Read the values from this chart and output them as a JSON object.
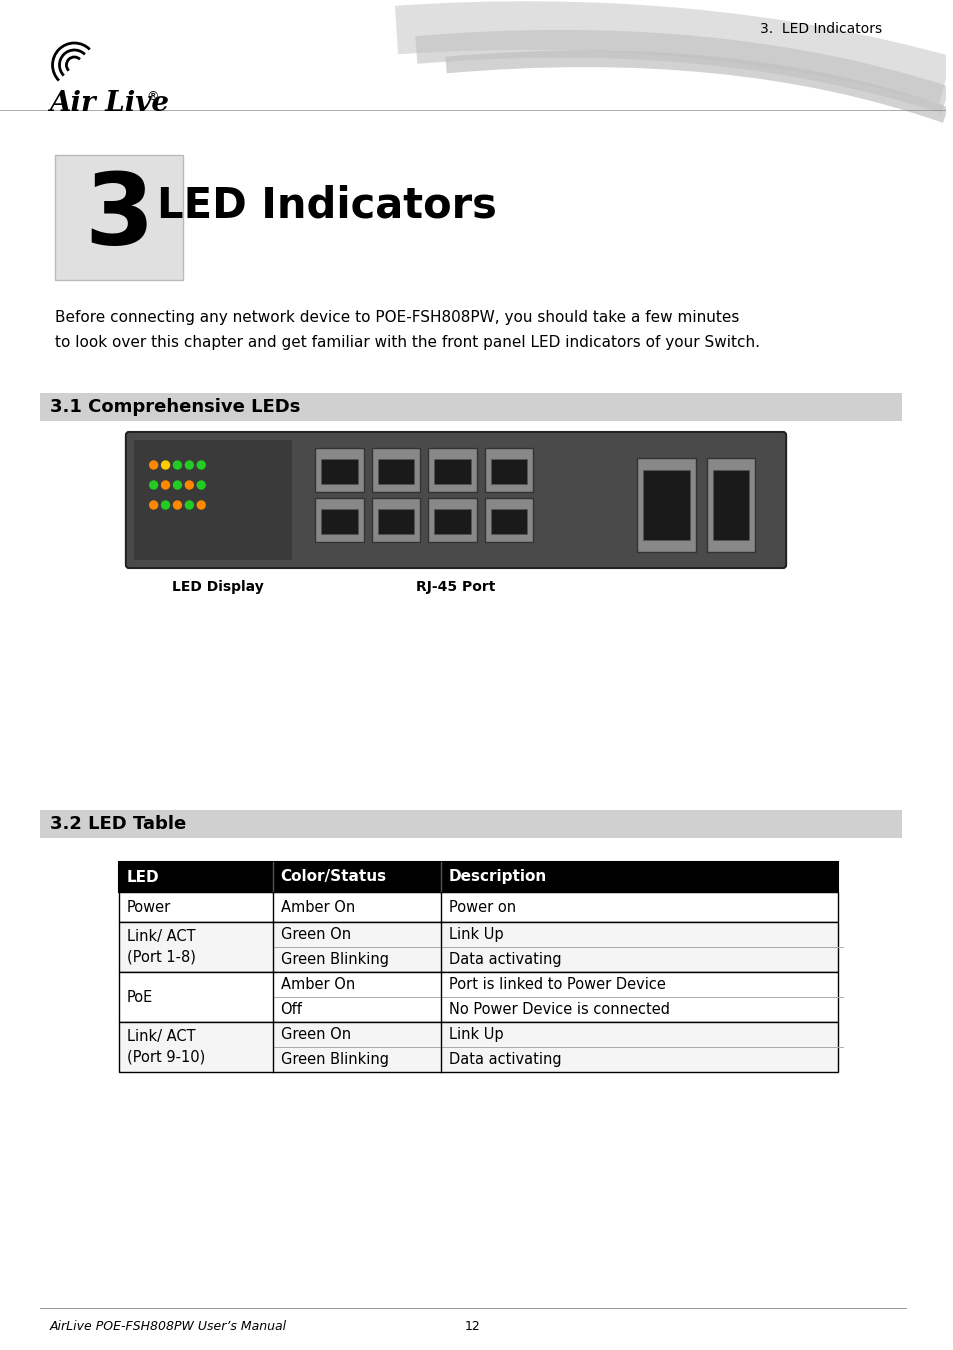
{
  "page_title": "3.  LED Indicators",
  "chapter_num": "3",
  "chapter_title": "LED Indicators",
  "intro_text": "Before connecting any network device to POE-FSH808PW, you should take a few minutes\nto look over this chapter and get familiar with the front panel LED indicators of your Switch.",
  "section1_title": "3.1 Comprehensive LEDs",
  "section2_title": "3.2 LED Table",
  "table_header": [
    "LED",
    "Color/Status",
    "Description"
  ],
  "table_rows": [
    [
      "Power",
      "Amber On",
      "Power on"
    ],
    [
      "Link/ ACT\n(Port 1-8)",
      "Green On\nGreen Blinking",
      "Link Up\nData activating"
    ],
    [
      "PoE",
      "Amber On\nOff",
      "Port is linked to Power Device\nNo Power Device is connected"
    ],
    [
      "Link/ ACT\n(Port 9-10)",
      "Green On\nGreen Blinking",
      "Link Up\nData activating"
    ]
  ],
  "led_label": "LED Display",
  "port_label": "RJ-45 Port",
  "footer_left": "AirLive POE-FSH808PW User’s Manual",
  "footer_center": "12",
  "bg_color": "#ffffff",
  "header_bg": "#000000",
  "header_text_color": "#ffffff",
  "section_bar_color": "#d0d0d0",
  "chapter_box_color": "#e0e0e0",
  "table_border_color": "#000000",
  "row_alt_color": "#f5f5f5",
  "section_text_color": "#000000"
}
